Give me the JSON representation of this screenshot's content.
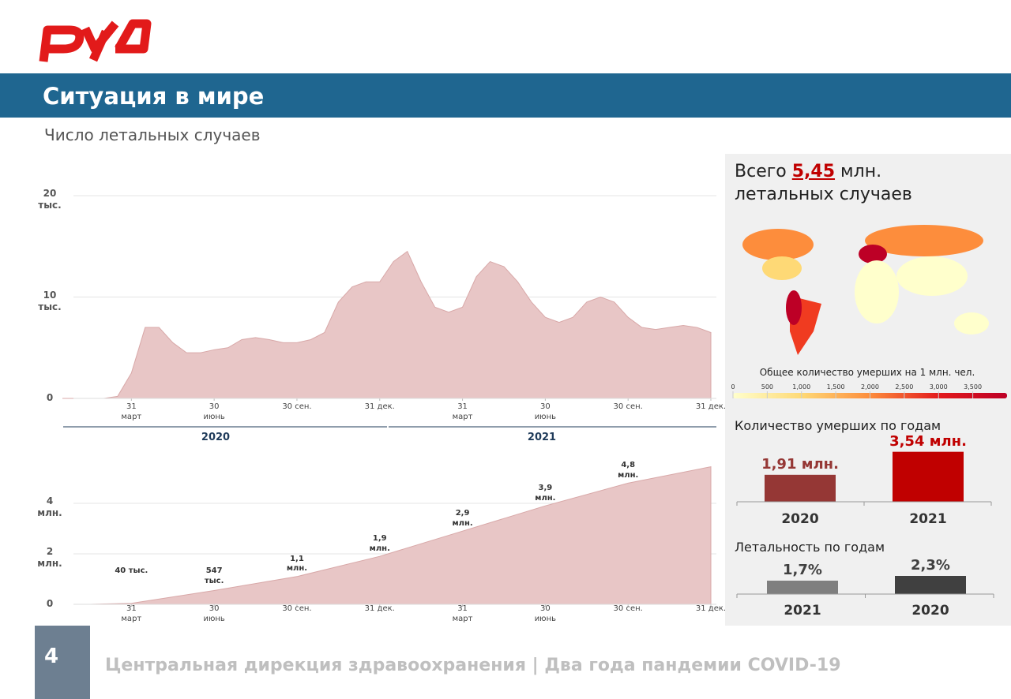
{
  "header": {
    "title": "Ситуация в мире",
    "subtitle": "Число летальных случаев"
  },
  "footer": {
    "page": "4",
    "text": "Центральная дирекция здравоохранения | Два года пандемии COVID-19"
  },
  "total": {
    "prefix": "Всего",
    "value": "5,45",
    "suffix": "млн.",
    "line2": "летальных случаев"
  },
  "map_legend": {
    "title": "Общее количество умерших на 1 млн. чел.",
    "lim": [
      0,
      4000
    ],
    "colors": [
      "#ffffcc",
      "#fed976",
      "#fd8d3c",
      "#e31a1c",
      "#bd0026"
    ],
    "ticks": [
      0,
      500,
      {
        "value": 1000,
        "label": "1,000"
      },
      {
        "value": 1500,
        "label": "1,500"
      },
      {
        "value": 2000,
        "label": "2,000"
      },
      {
        "value": 2500,
        "label": "2,500"
      },
      {
        "value": 3000,
        "label": "3,000"
      },
      {
        "value": 3500,
        "label": "3,500"
      }
    ]
  },
  "chart_data": [
    {
      "type": "area",
      "color": "#e8c6c6",
      "xlim": [
        1,
        48
      ],
      "ylim": [
        0,
        20000
      ],
      "grid": true,
      "x": [
        1,
        2,
        3,
        4,
        5,
        6,
        7,
        8,
        9,
        10,
        11,
        12,
        13,
        14,
        15,
        16,
        17,
        18,
        19,
        20,
        21,
        22,
        23,
        24,
        25,
        26,
        27,
        28,
        29,
        30,
        31,
        32,
        33,
        34,
        35,
        36,
        37,
        38,
        39,
        40,
        41,
        42,
        43,
        44,
        45,
        46,
        47,
        48
      ],
      "values": [
        0,
        0,
        0,
        0,
        200,
        2500,
        7000,
        7000,
        5500,
        4500,
        4500,
        4800,
        5000,
        5800,
        6000,
        5800,
        5500,
        5500,
        5800,
        6500,
        9500,
        11000,
        11500,
        11500,
        13500,
        14500,
        11500,
        9000,
        8500,
        9000,
        12000,
        13500,
        13000,
        11500,
        9500,
        8000,
        7500,
        8000,
        9500,
        10000,
        9500,
        8000,
        7000,
        6800,
        7000,
        7200,
        7000,
        6500
      ],
      "yticks": [
        0,
        {
          "value": 10000,
          "label": "10 тыс."
        },
        {
          "value": 20000,
          "label": "20 тыс."
        }
      ],
      "xticks": [
        {
          "value": 6,
          "label": "31 март"
        },
        {
          "value": 12,
          "label": "30 июнь"
        },
        {
          "value": 18,
          "label": "30 сен."
        },
        {
          "value": 24,
          "label": "31 дек."
        },
        {
          "value": 30,
          "label": "31 март"
        },
        {
          "value": 36,
          "label": "30 июнь"
        },
        {
          "value": 42,
          "label": "30 сен."
        },
        {
          "value": 48,
          "label": "31 дек."
        }
      ],
      "years": [
        "2020",
        "2021"
      ]
    },
    {
      "type": "area",
      "color": "#e8c6c6",
      "xlim": [
        1,
        48
      ],
      "ylim": [
        0,
        5500000
      ],
      "grid": true,
      "x": [
        3,
        6,
        12,
        18,
        24,
        30,
        36,
        42,
        48
      ],
      "values": [
        0,
        40000,
        547000,
        1100000,
        1900000,
        2900000,
        3900000,
        4800000,
        5450000
      ],
      "value_labels": [
        null,
        "40 тыс.",
        "547 тыс.",
        "1,1 млн.",
        "1,9 млн.",
        "2,9 млн.",
        "3,9 млн.",
        "4,8 млн.",
        null
      ],
      "yticks": [
        0,
        {
          "value": 2000000,
          "label": "2 млн."
        },
        {
          "value": 4000000,
          "label": "4 млн."
        }
      ],
      "xticks": [
        {
          "value": 6,
          "label": "31 март"
        },
        {
          "value": 12,
          "label": "30 июнь"
        },
        {
          "value": 18,
          "label": "30 сен."
        },
        {
          "value": 24,
          "label": "31 дек."
        },
        {
          "value": 30,
          "label": "31 март"
        },
        {
          "value": 36,
          "label": "30 июнь"
        },
        {
          "value": 42,
          "label": "30 сен."
        },
        {
          "value": 48,
          "label": "31 дек."
        }
      ]
    },
    {
      "type": "bar",
      "title": "Количество умерших по годам",
      "categories": [
        "2020",
        "2021"
      ],
      "values": [
        1910000,
        3540000
      ],
      "value_labels": [
        "1,91 млн.",
        "3,54 млн."
      ],
      "colors": [
        "#953735",
        "#c00000"
      ],
      "ylim": [
        0,
        3800000
      ]
    },
    {
      "type": "bar",
      "title": "Летальность по годам",
      "categories": [
        "2021",
        "2020"
      ],
      "values": [
        1.7,
        2.3
      ],
      "value_labels": [
        "1,7%",
        "2,3%"
      ],
      "colors": [
        "#7f7f7f",
        "#404040"
      ],
      "ylim": [
        0,
        3
      ]
    }
  ]
}
